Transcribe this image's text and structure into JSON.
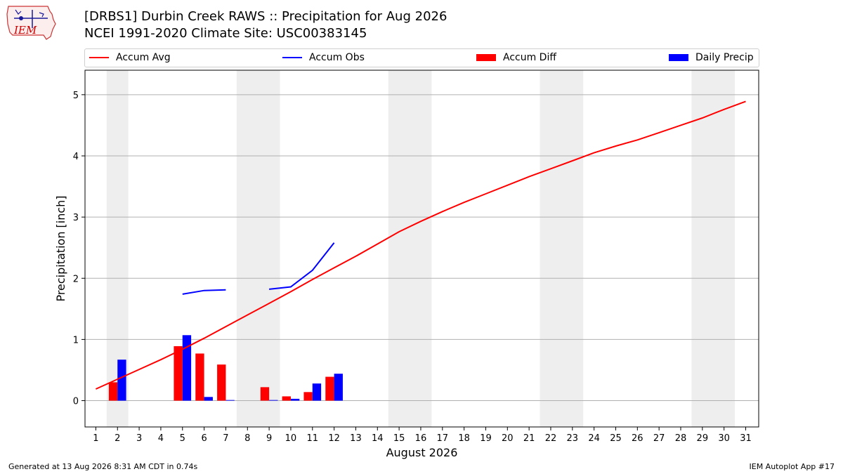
{
  "header": {
    "title_line1": "[DRBS1] Durbin Creek RAWS :: Precipitation for Aug 2026",
    "title_line2": "NCEI 1991-2020 Climate Site: USC00383145",
    "logo_text": "IEM"
  },
  "legend": {
    "items": [
      {
        "label": "Accum Avg",
        "kind": "line",
        "color": "#ff0000"
      },
      {
        "label": "Accum Obs",
        "kind": "line",
        "color": "#0000ff"
      },
      {
        "label": "Accum Diff",
        "kind": "patch",
        "color": "#ff0000"
      },
      {
        "label": "Daily Precip",
        "kind": "patch",
        "color": "#0000ff"
      }
    ]
  },
  "chart_data": {
    "type": "bar",
    "xlabel": "August 2026",
    "ylabel": "Precipitation [inch]",
    "x_ticks": [
      1,
      2,
      3,
      4,
      5,
      6,
      7,
      8,
      9,
      10,
      11,
      12,
      13,
      14,
      15,
      16,
      17,
      18,
      19,
      20,
      21,
      22,
      23,
      24,
      25,
      26,
      27,
      28,
      29,
      30,
      31
    ],
    "y_ticks": [
      0,
      1,
      2,
      3,
      4,
      5
    ],
    "xlim": [
      0.5,
      31.6
    ],
    "ylim": [
      -0.43,
      5.4
    ],
    "grid": "horizontal",
    "weekend_shading": [
      [
        1,
        2
      ],
      [
        7,
        9
      ],
      [
        14,
        16
      ],
      [
        21,
        23
      ],
      [
        28,
        30
      ]
    ],
    "series": [
      {
        "name": "Accum Avg",
        "kind": "line",
        "color": "#ff0000",
        "x": [
          1,
          2,
          3,
          4,
          5,
          6,
          7,
          8,
          9,
          10,
          11,
          12,
          13,
          14,
          15,
          16,
          17,
          18,
          19,
          20,
          21,
          22,
          23,
          24,
          25,
          26,
          27,
          28,
          29,
          30,
          31
        ],
        "values": [
          0.19,
          0.35,
          0.51,
          0.67,
          0.84,
          1.02,
          1.21,
          1.4,
          1.59,
          1.78,
          1.98,
          2.17,
          2.36,
          2.56,
          2.76,
          2.93,
          3.09,
          3.24,
          3.38,
          3.52,
          3.66,
          3.79,
          3.92,
          4.05,
          4.16,
          4.26,
          4.38,
          4.5,
          4.62,
          4.76,
          4.89
        ]
      },
      {
        "name": "Accum Obs",
        "kind": "line",
        "color": "#0000ff",
        "x": [
          5,
          6,
          7,
          null,
          9,
          10,
          11,
          12
        ],
        "values": [
          1.74,
          1.8,
          1.81,
          null,
          1.82,
          1.86,
          2.13,
          2.58
        ]
      },
      {
        "name": "Accum Diff",
        "kind": "bar",
        "color": "#ff0000",
        "x": [
          2,
          5,
          6,
          7,
          9,
          10,
          11,
          12
        ],
        "values": [
          0.3,
          0.89,
          0.77,
          0.59,
          0.22,
          0.07,
          0.14,
          0.39
        ]
      },
      {
        "name": "Daily Precip",
        "kind": "bar",
        "color": "#0000ff",
        "x": [
          2,
          5,
          6,
          7,
          9,
          10,
          11,
          12
        ],
        "values": [
          0.67,
          1.07,
          0.06,
          0.01,
          0.01,
          0.03,
          0.28,
          0.44
        ]
      }
    ]
  },
  "footer": {
    "left": "Generated at 13 Aug 2026 8:31 AM CDT in 0.74s",
    "right": "IEM Autoplot App #17"
  }
}
